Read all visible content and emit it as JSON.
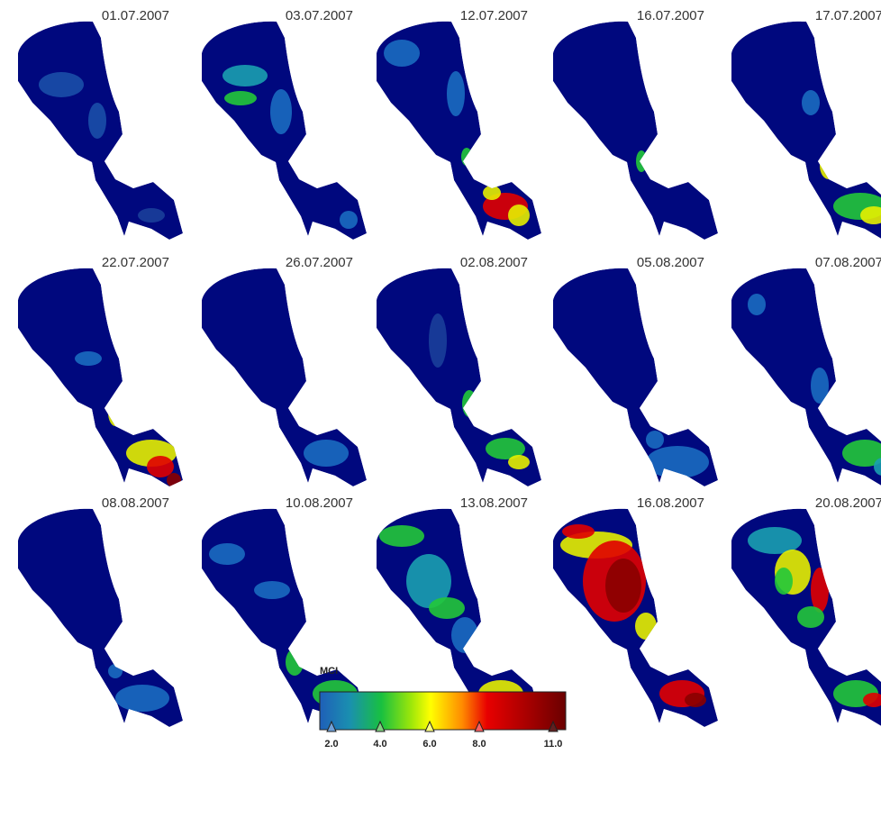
{
  "panels": [
    {
      "date": "01.07.2007"
    },
    {
      "date": "03.07.2007"
    },
    {
      "date": "12.07.2007"
    },
    {
      "date": "16.07.2007"
    },
    {
      "date": "17.07.2007"
    },
    {
      "date": "22.07.2007"
    },
    {
      "date": "26.07.2007"
    },
    {
      "date": "02.08.2007"
    },
    {
      "date": "05.08.2007"
    },
    {
      "date": "07.08.2007"
    },
    {
      "date": "08.08.2007"
    },
    {
      "date": "10.08.2007"
    },
    {
      "date": "13.08.2007"
    },
    {
      "date": "16.08.2007"
    },
    {
      "date": "20.08.2007"
    }
  ],
  "legend": {
    "title": "MCI",
    "ticks": [
      "2.0",
      "4.0",
      "6.0",
      "8.0",
      "11.0"
    ]
  }
}
